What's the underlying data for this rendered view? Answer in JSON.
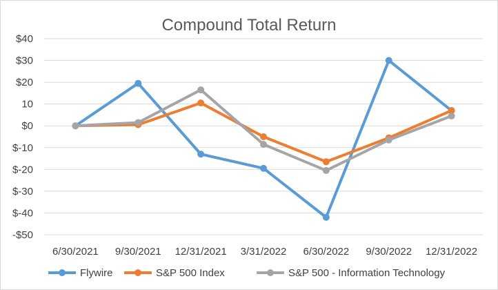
{
  "chart_data": {
    "type": "line",
    "title": "Compound Total Return",
    "xlabel": "",
    "ylabel": "",
    "categories": [
      "6/30/2021",
      "9/30/2021",
      "12/31/2021",
      "3/31/2022",
      "6/30/2022",
      "9/30/2022",
      "12/31/2022"
    ],
    "y_ticks": [
      "$40",
      "$30",
      "$20",
      "10",
      "$0",
      "$-10",
      "$-20",
      "$-30",
      "$-40",
      "-$50"
    ],
    "ylim": [
      -50,
      40
    ],
    "grid": true,
    "legend_position": "bottom",
    "series": [
      {
        "name": "Flywire",
        "color": "#5b9bd5",
        "values": [
          0,
          19.5,
          -13,
          -19.5,
          -42,
          30,
          7
        ]
      },
      {
        "name": "S&P 500 Index",
        "color": "#ed7d31",
        "values": [
          0,
          0.5,
          10.5,
          -5,
          -16.5,
          -5.5,
          7
        ]
      },
      {
        "name": "S&P 500 - Information Technology",
        "color": "#a5a5a5",
        "values": [
          0,
          1.5,
          16.5,
          -8.5,
          -20.5,
          -6.5,
          4.5
        ]
      }
    ]
  }
}
